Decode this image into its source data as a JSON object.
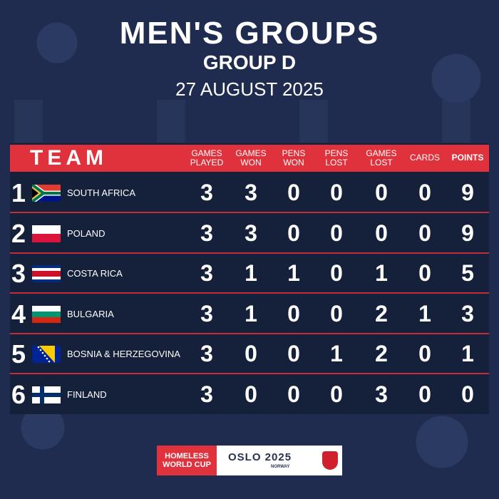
{
  "title": "MEN'S GROUPS",
  "group": "GROUP D",
  "date": "27 AUGUST 2025",
  "header": {
    "team": "TEAM",
    "columns": [
      [
        "GAMES",
        "PLAYED"
      ],
      [
        "GAMES",
        "WON"
      ],
      [
        "PENS",
        "WON"
      ],
      [
        "PENS",
        "LOST"
      ],
      [
        "GAMES",
        "LOST"
      ],
      [
        "CARDS",
        ""
      ],
      [
        "POINTS",
        ""
      ]
    ]
  },
  "rows": [
    {
      "rank": "1",
      "team": "SOUTH AFRICA",
      "flag": "south-africa",
      "values": [
        "3",
        "3",
        "0",
        "0",
        "0",
        "0",
        "9"
      ]
    },
    {
      "rank": "2",
      "team": "POLAND",
      "flag": "poland",
      "values": [
        "3",
        "3",
        "0",
        "0",
        "0",
        "0",
        "9"
      ]
    },
    {
      "rank": "3",
      "team": "COSTA RICA",
      "flag": "costa-rica",
      "values": [
        "3",
        "1",
        "1",
        "0",
        "1",
        "0",
        "5"
      ]
    },
    {
      "rank": "4",
      "team": "BULGARIA",
      "flag": "bulgaria",
      "values": [
        "3",
        "1",
        "0",
        "0",
        "2",
        "1",
        "3"
      ]
    },
    {
      "rank": "5",
      "team": "BOSNIA & HERZEGOVINA",
      "flag": "bosnia-herzegovina",
      "values": [
        "3",
        "0",
        "0",
        "1",
        "2",
        "0",
        "1"
      ]
    },
    {
      "rank": "6",
      "team": "FINLAND",
      "flag": "finland",
      "values": [
        "3",
        "0",
        "0",
        "0",
        "3",
        "0",
        "0"
      ]
    }
  ],
  "footer": {
    "hwc": "HOMELESS WORLD CUP",
    "oslo": "OSLO 2025",
    "norway": "NORWAY"
  },
  "colors": {
    "accent": "#e0323c",
    "panel": "#15203a",
    "background": "#1f2c4f"
  }
}
